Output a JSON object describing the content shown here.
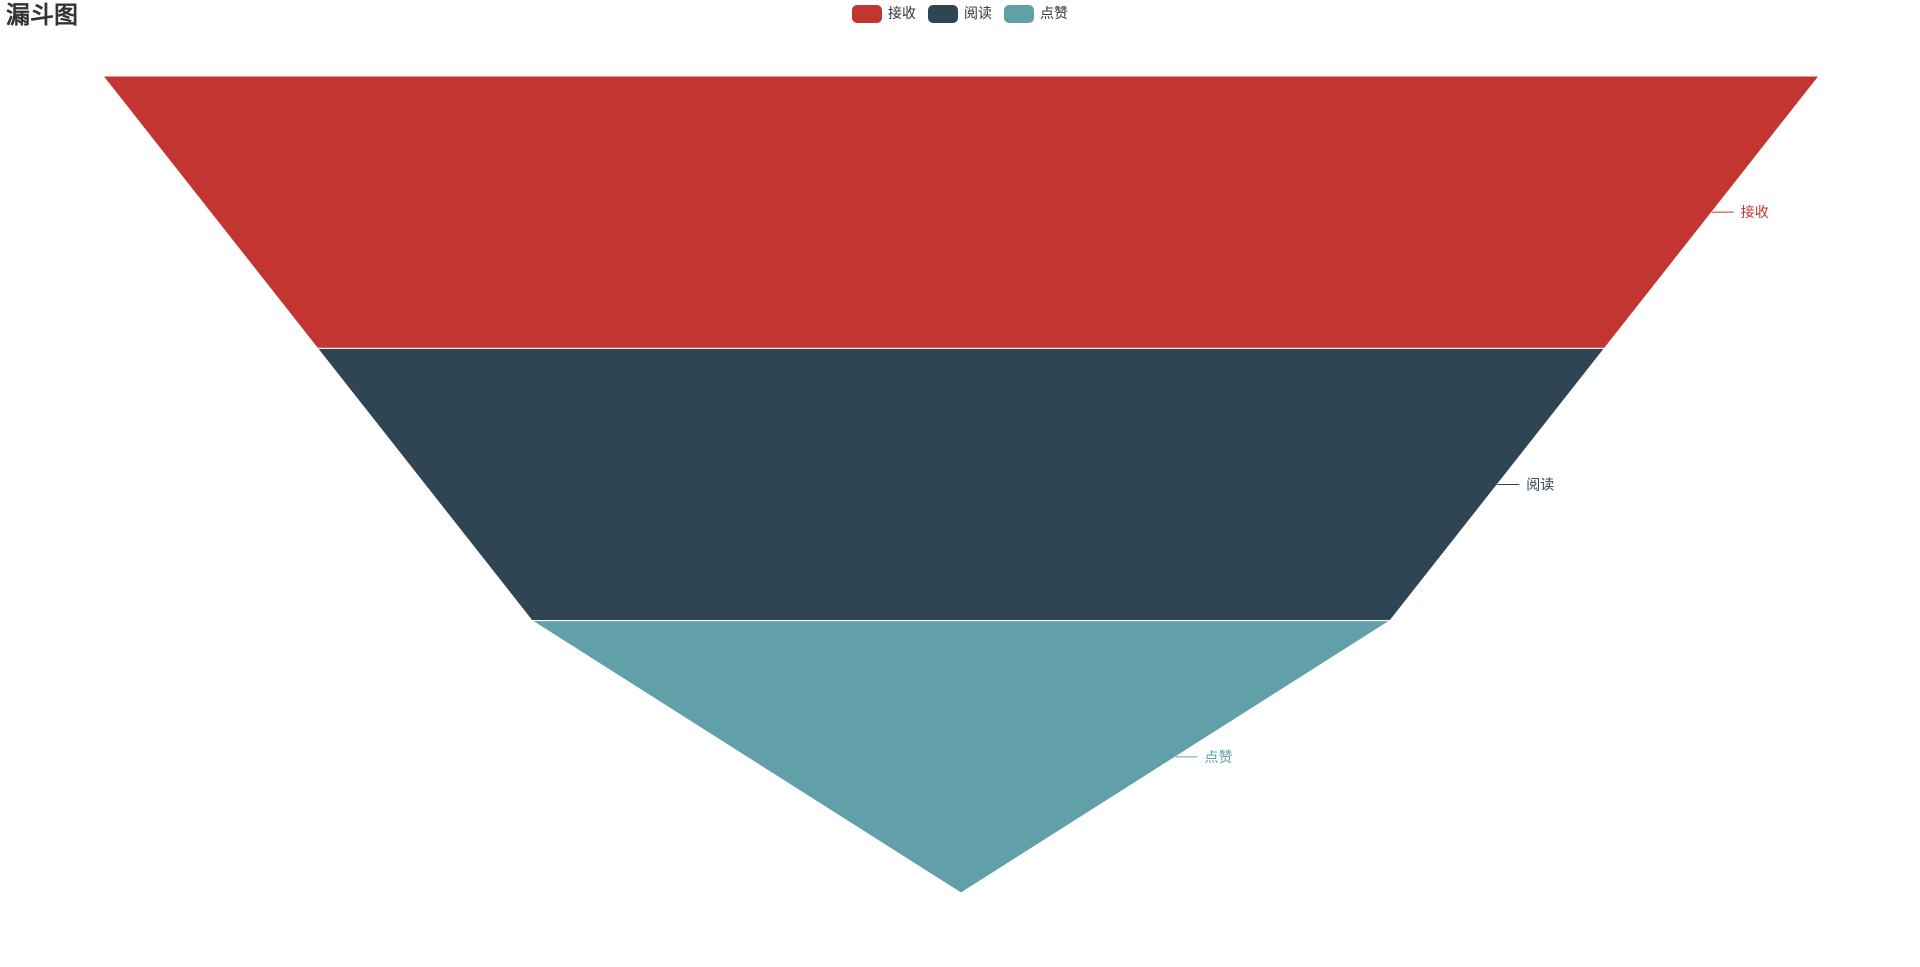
{
  "title": "漏斗图",
  "legend": {
    "items": [
      {
        "label": "接收",
        "color": "#c23531"
      },
      {
        "label": "阅读",
        "color": "#2f4554"
      },
      {
        "label": "点赞",
        "color": "#61a0a8"
      }
    ]
  },
  "chart_data": {
    "type": "funnel",
    "title": "漏斗图",
    "legend_position": "top-center",
    "sort": "descending",
    "label_position": "right",
    "series": [
      {
        "data": [
          {
            "name": "接收",
            "value": 100,
            "color": "#c23531"
          },
          {
            "name": "阅读",
            "value": 75,
            "color": "#2f4554"
          },
          {
            "name": "点赞",
            "value": 50,
            "color": "#61a0a8"
          }
        ]
      }
    ]
  }
}
